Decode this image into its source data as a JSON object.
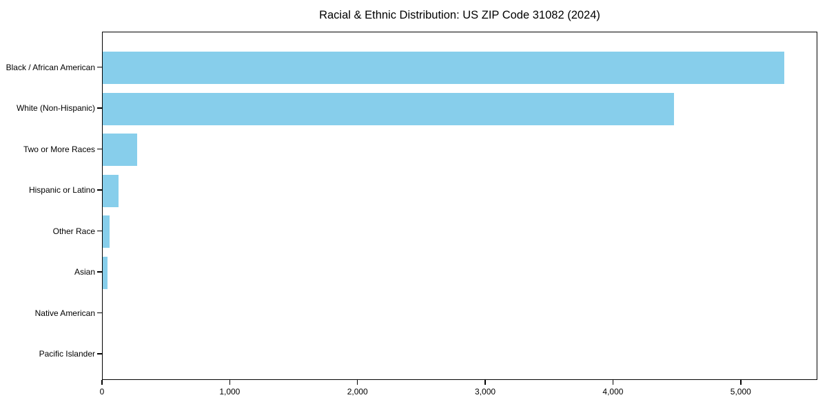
{
  "figure": {
    "title": "Racial & Ethnic Distribution: US ZIP Code 31082 (2024)",
    "colors": {
      "bar": "#87CEEB",
      "axis": "#000000",
      "background": "#ffffff",
      "text": "#000000"
    }
  },
  "chart_data": {
    "type": "bar",
    "orientation": "horizontal",
    "title": "Racial & Ethnic Distribution: US ZIP Code 31082 (2024)",
    "categories": [
      "Black / African American",
      "White (Non-Hispanic)",
      "Two or More Races",
      "Hispanic or Latino",
      "Other Race",
      "Asian",
      "Native American",
      "Pacific Islander"
    ],
    "values": [
      5338,
      4475,
      268,
      122,
      52,
      38,
      0,
      0
    ],
    "xlabel": "",
    "ylabel": "",
    "xlim": [
      0,
      5600
    ],
    "xticks": [
      0,
      1000,
      2000,
      3000,
      4000,
      5000
    ],
    "xtick_labels": [
      "0",
      "1,000",
      "2,000",
      "3,000",
      "4,000",
      "5,000"
    ],
    "bar_color": "#87CEEB",
    "grid": false,
    "legend": false
  }
}
